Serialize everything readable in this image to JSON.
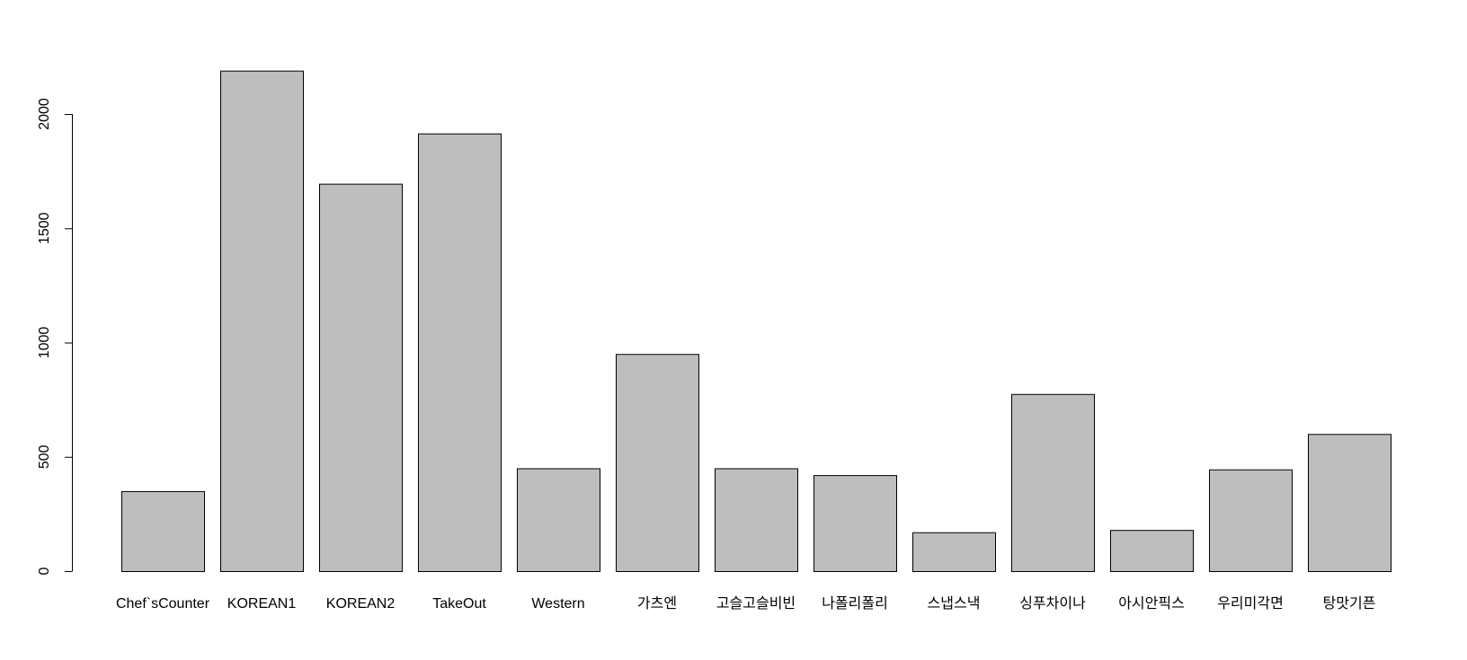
{
  "chart_data": {
    "type": "bar",
    "title": "",
    "xlabel": "",
    "ylabel": "",
    "categories": [
      "Chef`sCounter",
      "KOREAN1",
      "KOREAN2",
      "TakeOut",
      "Western",
      "가츠엔",
      "고슬고슬비빈",
      "나폴리폴리",
      "스냅스낵",
      "싱푸차이나",
      "아시안픽스",
      "우리미각면",
      "탕맛기픈"
    ],
    "values": [
      350,
      2190,
      1695,
      1915,
      450,
      950,
      450,
      420,
      170,
      775,
      180,
      445,
      600
    ],
    "ylim": [
      0,
      2200
    ],
    "yticks": [
      0,
      500,
      1000,
      1500,
      2000
    ],
    "grid": false,
    "legend": "none",
    "colors": {
      "bar_fill": "#bebebe",
      "bar_stroke": "#000000",
      "axis": "#000000",
      "background": "#ffffff"
    }
  }
}
